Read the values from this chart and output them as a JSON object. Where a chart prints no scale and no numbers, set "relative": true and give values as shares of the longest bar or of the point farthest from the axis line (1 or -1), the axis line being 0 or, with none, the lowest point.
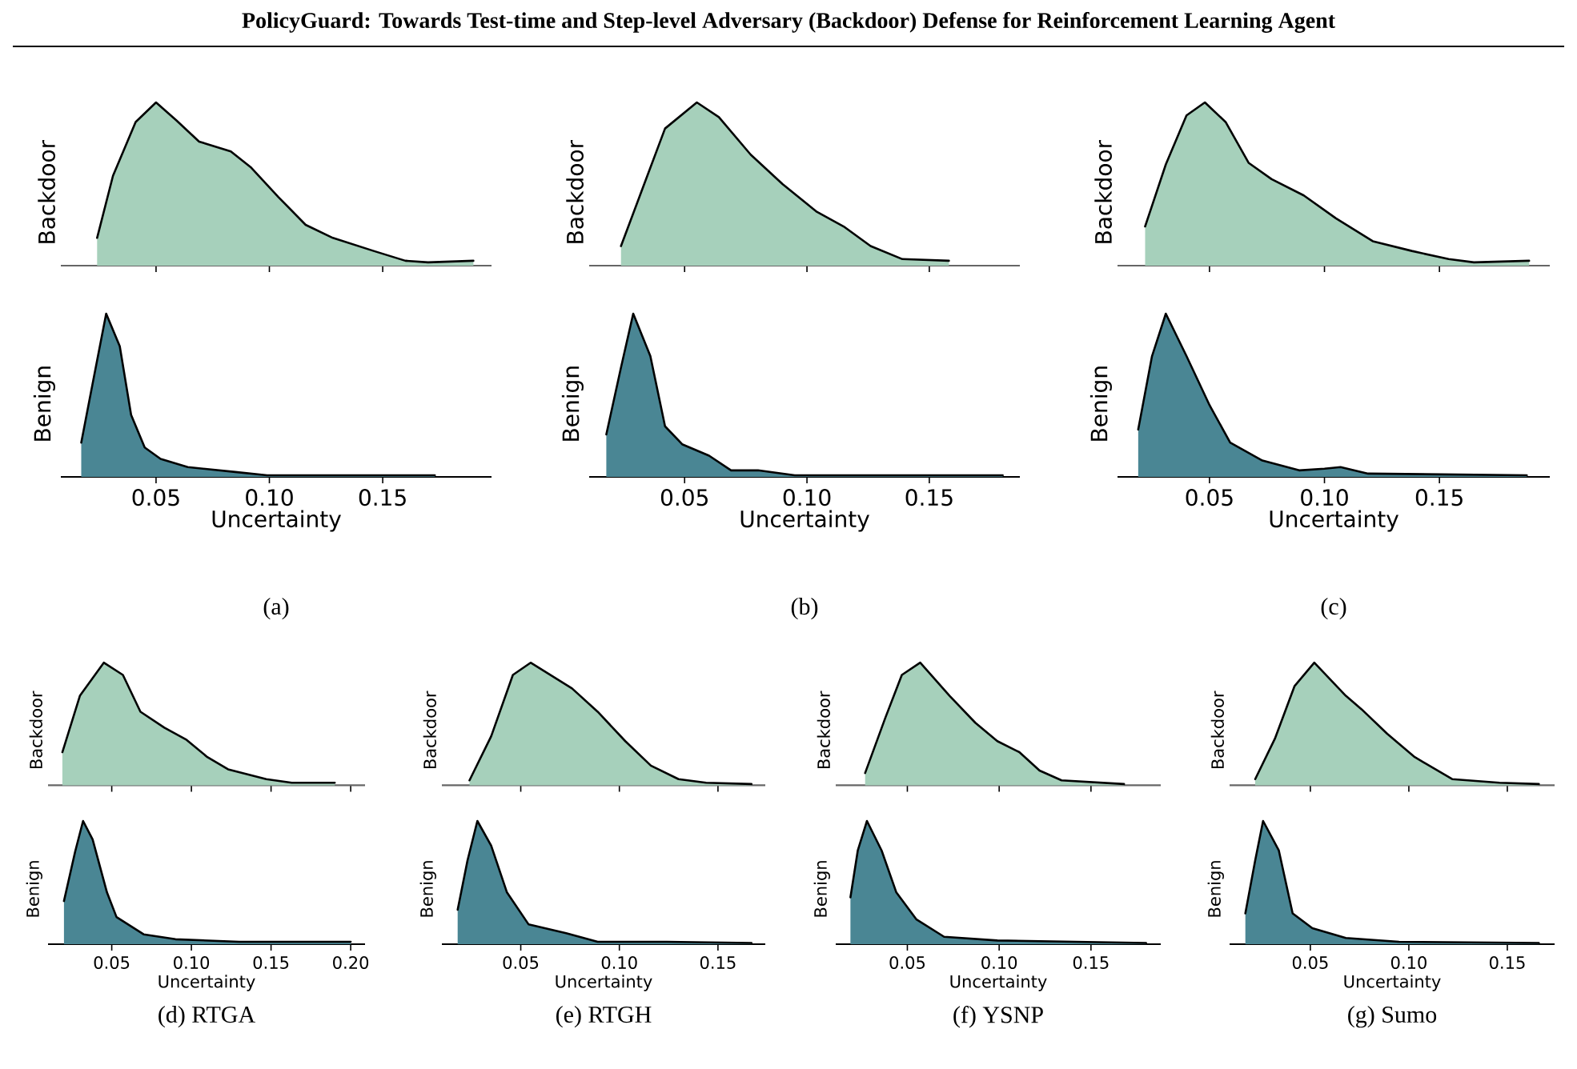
{
  "chart_data": [
    {
      "type": "area",
      "relative": true,
      "title": "PolicyGuard: Towards Test-time and Step-level Adversary (Backdoor) Defense for Reinforcement Learning Agent",
      "ylabel": "Backdoor",
      "color": "#a6d0bb",
      "tick_labels": false,
      "xlim": [
        0.008,
        0.198
      ],
      "xticks": [
        {
          "value": 0.05,
          "label": null
        },
        {
          "value": 0.1,
          "label": null
        },
        {
          "value": 0.15,
          "label": null
        }
      ],
      "x": [
        0.024,
        0.031,
        0.041,
        0.05,
        0.059,
        0.069,
        0.083,
        0.092,
        0.104,
        0.116,
        0.128,
        0.146,
        0.16,
        0.17,
        0.19
      ],
      "values": [
        0.17,
        0.55,
        0.88,
        1.0,
        0.89,
        0.76,
        0.7,
        0.6,
        0.42,
        0.25,
        0.17,
        0.09,
        0.03,
        0.02,
        0.03
      ]
    },
    {
      "type": "area",
      "relative": true,
      "ylabel": "Benign",
      "xlabel": "Uncertainty",
      "color": "#4a8694",
      "tick_labels": "x",
      "xlim": [
        0.008,
        0.198
      ],
      "xticks": [
        {
          "value": 0.05,
          "label": "0.05"
        },
        {
          "value": 0.1,
          "label": "0.10"
        },
        {
          "value": 0.15,
          "label": "0.15"
        }
      ],
      "annotations": [
        "(a)"
      ],
      "x": [
        0.017,
        0.022,
        0.028,
        0.034,
        0.039,
        0.045,
        0.052,
        0.064,
        0.085,
        0.099,
        0.123,
        0.173
      ],
      "values": [
        0.21,
        0.57,
        1.0,
        0.8,
        0.38,
        0.18,
        0.11,
        0.06,
        0.03,
        0.01,
        0.01,
        0.01
      ]
    },
    {
      "type": "area",
      "relative": true,
      "ylabel": "Backdoor",
      "color": "#a6d0bb",
      "tick_labels": false,
      "xlim": [
        0.011,
        0.187
      ],
      "xticks": [
        {
          "value": 0.05,
          "label": null
        },
        {
          "value": 0.1,
          "label": null
        },
        {
          "value": 0.15,
          "label": null
        }
      ],
      "x": [
        0.024,
        0.033,
        0.042,
        0.055,
        0.064,
        0.077,
        0.09,
        0.104,
        0.115,
        0.126,
        0.139,
        0.158
      ],
      "values": [
        0.12,
        0.48,
        0.84,
        1.0,
        0.91,
        0.68,
        0.5,
        0.33,
        0.24,
        0.12,
        0.04,
        0.03
      ]
    },
    {
      "type": "area",
      "relative": true,
      "ylabel": "Benign",
      "xlabel": "Uncertainty",
      "color": "#4a8694",
      "tick_labels": "x",
      "xlim": [
        0.011,
        0.187
      ],
      "xticks": [
        {
          "value": 0.05,
          "label": "0.05"
        },
        {
          "value": 0.1,
          "label": "0.10"
        },
        {
          "value": 0.15,
          "label": "0.15"
        }
      ],
      "annotations": [
        "(b)"
      ],
      "x": [
        0.018,
        0.024,
        0.029,
        0.036,
        0.042,
        0.049,
        0.06,
        0.069,
        0.08,
        0.095,
        0.18
      ],
      "values": [
        0.26,
        0.67,
        1.0,
        0.74,
        0.31,
        0.2,
        0.13,
        0.04,
        0.04,
        0.01,
        0.01
      ]
    },
    {
      "type": "area",
      "relative": true,
      "ylabel": "Backdoor",
      "color": "#a6d0bb",
      "tick_labels": false,
      "xlim": [
        0.01,
        0.198
      ],
      "xticks": [
        {
          "value": 0.05,
          "label": null
        },
        {
          "value": 0.1,
          "label": null
        },
        {
          "value": 0.15,
          "label": null
        }
      ],
      "x": [
        0.022,
        0.031,
        0.04,
        0.048,
        0.057,
        0.067,
        0.077,
        0.091,
        0.105,
        0.121,
        0.138,
        0.154,
        0.165,
        0.189
      ],
      "values": [
        0.24,
        0.62,
        0.92,
        1.0,
        0.88,
        0.63,
        0.53,
        0.43,
        0.29,
        0.15,
        0.09,
        0.04,
        0.02,
        0.03
      ]
    },
    {
      "type": "area",
      "relative": true,
      "ylabel": "Benign",
      "xlabel": "Uncertainty",
      "color": "#4a8694",
      "tick_labels": "x",
      "xlim": [
        0.01,
        0.198
      ],
      "xticks": [
        {
          "value": 0.05,
          "label": "0.05"
        },
        {
          "value": 0.1,
          "label": "0.10"
        },
        {
          "value": 0.15,
          "label": "0.15"
        }
      ],
      "annotations": [
        "(c)"
      ],
      "x": [
        0.019,
        0.025,
        0.031,
        0.04,
        0.05,
        0.059,
        0.073,
        0.089,
        0.1,
        0.107,
        0.119,
        0.188
      ],
      "values": [
        0.29,
        0.74,
        1.0,
        0.74,
        0.44,
        0.21,
        0.1,
        0.04,
        0.05,
        0.06,
        0.02,
        0.01
      ]
    },
    {
      "type": "area",
      "relative": true,
      "ylabel": "Backdoor",
      "color": "#a6d0bb",
      "tick_labels": false,
      "xlim": [
        0.01,
        0.209
      ],
      "xticks": [
        {
          "value": 0.05,
          "label": null
        },
        {
          "value": 0.1,
          "label": null
        },
        {
          "value": 0.15,
          "label": null
        },
        {
          "value": 0.2,
          "label": null
        }
      ],
      "x": [
        0.019,
        0.03,
        0.045,
        0.057,
        0.068,
        0.083,
        0.097,
        0.11,
        0.123,
        0.147,
        0.163,
        0.19
      ],
      "values": [
        0.27,
        0.73,
        1.0,
        0.9,
        0.6,
        0.47,
        0.37,
        0.23,
        0.13,
        0.05,
        0.02,
        0.02
      ]
    },
    {
      "type": "area",
      "relative": true,
      "ylabel": "Benign",
      "xlabel": "Uncertainty",
      "color": "#4a8694",
      "tick_labels": "x",
      "xlim": [
        0.01,
        0.209
      ],
      "xticks": [
        {
          "value": 0.05,
          "label": "0.05"
        },
        {
          "value": 0.1,
          "label": "0.10"
        },
        {
          "value": 0.15,
          "label": "0.15"
        },
        {
          "value": 0.2,
          "label": "0.20"
        }
      ],
      "annotations": [
        "(d) RTGA"
      ],
      "x": [
        0.02,
        0.027,
        0.032,
        0.038,
        0.047,
        0.053,
        0.07,
        0.09,
        0.13,
        0.2
      ],
      "values": [
        0.35,
        0.75,
        1.0,
        0.85,
        0.42,
        0.22,
        0.08,
        0.04,
        0.02,
        0.02
      ]
    },
    {
      "type": "area",
      "relative": true,
      "ylabel": "Backdoor",
      "color": "#a6d0bb",
      "tick_labels": false,
      "xlim": [
        0.01,
        0.174
      ],
      "xticks": [
        {
          "value": 0.05,
          "label": null
        },
        {
          "value": 0.1,
          "label": null
        },
        {
          "value": 0.15,
          "label": null
        }
      ],
      "x": [
        0.024,
        0.035,
        0.046,
        0.055,
        0.076,
        0.089,
        0.103,
        0.116,
        0.13,
        0.144,
        0.167
      ],
      "values": [
        0.04,
        0.4,
        0.9,
        1.0,
        0.79,
        0.6,
        0.36,
        0.16,
        0.05,
        0.02,
        0.01
      ]
    },
    {
      "type": "area",
      "relative": true,
      "ylabel": "Benign",
      "xlabel": "Uncertainty",
      "color": "#4a8694",
      "tick_labels": "x",
      "xlim": [
        0.01,
        0.174
      ],
      "xticks": [
        {
          "value": 0.05,
          "label": "0.05"
        },
        {
          "value": 0.1,
          "label": "0.10"
        },
        {
          "value": 0.15,
          "label": "0.15"
        }
      ],
      "annotations": [
        "(e) RTGH"
      ],
      "x": [
        0.018,
        0.023,
        0.028,
        0.035,
        0.043,
        0.054,
        0.073,
        0.089,
        0.124,
        0.167
      ],
      "values": [
        0.28,
        0.68,
        1.0,
        0.8,
        0.42,
        0.16,
        0.09,
        0.02,
        0.02,
        0.01
      ]
    },
    {
      "type": "area",
      "relative": true,
      "ylabel": "Backdoor",
      "color": "#a6d0bb",
      "tick_labels": false,
      "xlim": [
        0.011,
        0.188
      ],
      "xticks": [
        {
          "value": 0.05,
          "label": null
        },
        {
          "value": 0.1,
          "label": null
        },
        {
          "value": 0.15,
          "label": null
        }
      ],
      "x": [
        0.027,
        0.038,
        0.047,
        0.057,
        0.073,
        0.087,
        0.099,
        0.111,
        0.122,
        0.134,
        0.168
      ],
      "values": [
        0.1,
        0.55,
        0.9,
        1.0,
        0.73,
        0.51,
        0.36,
        0.27,
        0.12,
        0.04,
        0.01
      ]
    },
    {
      "type": "area",
      "relative": true,
      "ylabel": "Benign",
      "xlabel": "Uncertainty",
      "color": "#4a8694",
      "tick_labels": "x",
      "xlim": [
        0.011,
        0.188
      ],
      "xticks": [
        {
          "value": 0.05,
          "label": "0.05"
        },
        {
          "value": 0.1,
          "label": "0.10"
        },
        {
          "value": 0.15,
          "label": "0.15"
        }
      ],
      "annotations": [
        "(f) YSNP"
      ],
      "x": [
        0.019,
        0.023,
        0.028,
        0.036,
        0.044,
        0.055,
        0.07,
        0.099,
        0.18
      ],
      "values": [
        0.38,
        0.76,
        1.0,
        0.76,
        0.42,
        0.2,
        0.06,
        0.03,
        0.01
      ]
    },
    {
      "type": "area",
      "relative": true,
      "ylabel": "Backdoor",
      "color": "#a6d0bb",
      "tick_labels": false,
      "xlim": [
        0.009,
        0.174
      ],
      "xticks": [
        {
          "value": 0.05,
          "label": null
        },
        {
          "value": 0.1,
          "label": null
        },
        {
          "value": 0.15,
          "label": null
        }
      ],
      "x": [
        0.022,
        0.032,
        0.042,
        0.052,
        0.068,
        0.076,
        0.089,
        0.103,
        0.122,
        0.146,
        0.166
      ],
      "values": [
        0.05,
        0.38,
        0.81,
        1.0,
        0.73,
        0.62,
        0.42,
        0.23,
        0.05,
        0.02,
        0.01
      ]
    },
    {
      "type": "area",
      "relative": true,
      "ylabel": "Benign",
      "xlabel": "Uncertainty",
      "color": "#4a8694",
      "tick_labels": "x",
      "xlim": [
        0.009,
        0.174
      ],
      "xticks": [
        {
          "value": 0.05,
          "label": "0.05"
        },
        {
          "value": 0.1,
          "label": "0.10"
        },
        {
          "value": 0.15,
          "label": "0.15"
        }
      ],
      "annotations": [
        "(g) Sumo"
      ],
      "x": [
        0.017,
        0.022,
        0.026,
        0.034,
        0.041,
        0.051,
        0.068,
        0.095,
        0.166
      ],
      "values": [
        0.25,
        0.68,
        1.0,
        0.76,
        0.25,
        0.13,
        0.05,
        0.02,
        0.01
      ]
    }
  ]
}
